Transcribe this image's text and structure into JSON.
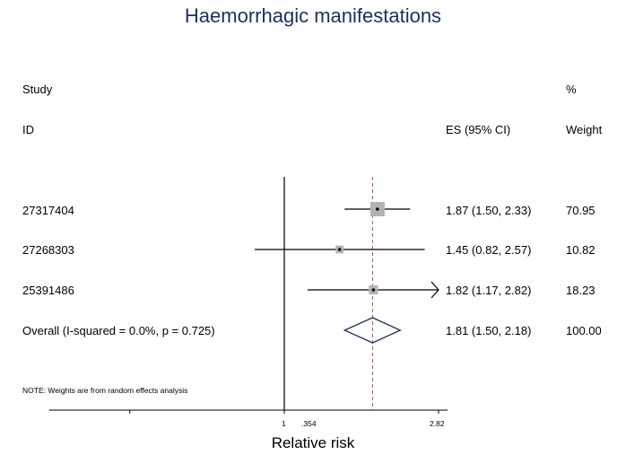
{
  "title": "Haemorrhagic manifestations",
  "headers": {
    "study_line1": "Study",
    "study_line2": "ID",
    "es_label": "ES (95% CI)",
    "weight_line1": "%",
    "weight_line2": "Weight"
  },
  "note": "NOTE: Weights are from random effects analysis",
  "xlabel": "Relative risk",
  "colors": {
    "title": "#1f2f5c",
    "diamond": "#1f2f5c",
    "overall_line": "#c0504d",
    "weight_box": "#b3b3b3"
  },
  "chart_data": {
    "type": "forest",
    "scale": "log",
    "null_value": 1,
    "xlim": [
      0.354,
      2.82
    ],
    "ticks": [
      {
        "value": 0.354,
        "label": ".354"
      },
      {
        "value": 1,
        "label": "1"
      },
      {
        "value": 2.82,
        "label": "2.82"
      }
    ],
    "studies": [
      {
        "id": "27317404",
        "es": 1.87,
        "lo": 1.5,
        "hi": 2.33,
        "es_text": "1.87 (1.50, 2.33)",
        "weight": 70.95,
        "weight_text": "70.95",
        "clipped_hi": false
      },
      {
        "id": "27268303",
        "es": 1.45,
        "lo": 0.82,
        "hi": 2.57,
        "es_text": "1.45 (0.82, 2.57)",
        "weight": 10.82,
        "weight_text": "10.82",
        "clipped_hi": false
      },
      {
        "id": "25391486",
        "es": 1.82,
        "lo": 1.17,
        "hi": 2.82,
        "es_text": "1.82 (1.17, 2.82)",
        "weight": 18.23,
        "weight_text": "18.23",
        "clipped_hi": true
      }
    ],
    "overall": {
      "label": "Overall  (I-squared = 0.0%, p = 0.725)",
      "es": 1.81,
      "lo": 1.5,
      "hi": 2.18,
      "es_text": "1.81 (1.50, 2.18)",
      "weight_text": "100.00"
    }
  }
}
